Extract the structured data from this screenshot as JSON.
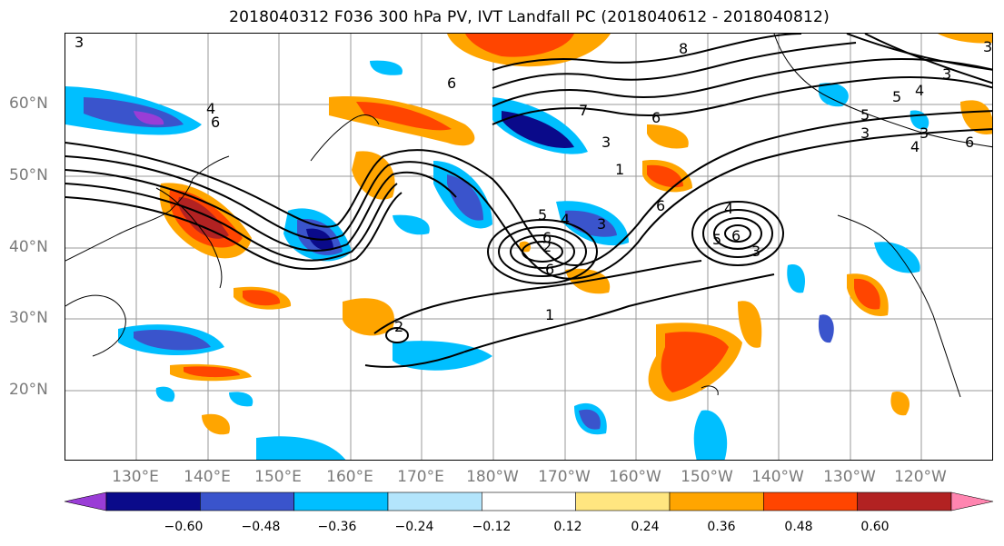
{
  "title": "2018040312 F036 300 hPa PV, IVT Landfall PC (2018040612 - 2018040812)",
  "map": {
    "lat_labels": [
      "60°N",
      "50°N",
      "40°N",
      "30°N",
      "20°N"
    ],
    "lon_labels": [
      "130°E",
      "140°E",
      "150°E",
      "160°E",
      "170°E",
      "180°W",
      "170°W",
      "160°W",
      "150°W",
      "140°W",
      "130°W",
      "120°W"
    ],
    "contour_labels": [
      "8",
      "4",
      "6",
      "3",
      "4",
      "5",
      "6",
      "5",
      "4",
      "3",
      "6",
      "5",
      "4",
      "3",
      "6",
      "4",
      "5",
      "6",
      "3",
      "2",
      "1",
      "3",
      "7",
      "6",
      "3",
      "1",
      "3",
      "2",
      "3",
      "6",
      "6"
    ]
  },
  "colorbar": {
    "colors": [
      "#9a3dd6",
      "#0a0a8a",
      "#3a54cc",
      "#00bfff",
      "#b3e5fc",
      "#ffffff",
      "#ffe680",
      "#ffa500",
      "#ff4500",
      "#b22222",
      "#ff85b0"
    ],
    "tick_labels": [
      "−0.60",
      "−0.48",
      "−0.36",
      "−0.24",
      "−0.12",
      "0.12",
      "0.24",
      "0.36",
      "0.48",
      "0.60"
    ]
  }
}
